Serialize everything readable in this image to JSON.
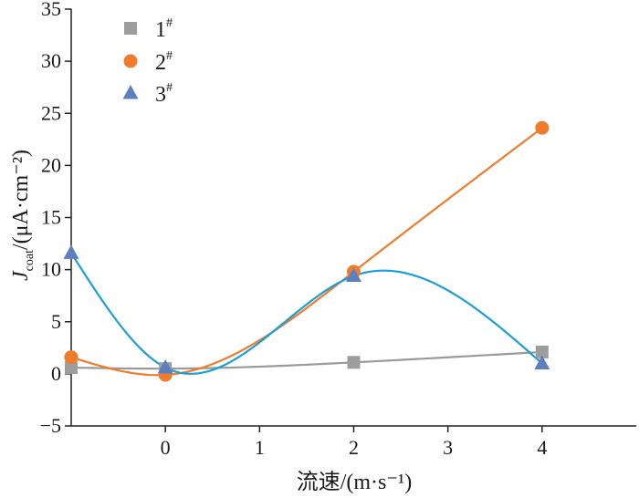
{
  "chart_data": {
    "type": "scatter",
    "xlabel": "流速/(m·s⁻¹)",
    "ylabel": "J_coat/(μA·cm⁻²)",
    "ylabel_parts": {
      "symbol": "J",
      "subscript": "coat",
      "unit": "/(μA·cm⁻²)"
    },
    "xlim": [
      -1,
      5
    ],
    "ylim": [
      -5,
      35
    ],
    "x_ticks": [
      0,
      1,
      2,
      3,
      4
    ],
    "y_ticks": [
      -5,
      0,
      5,
      10,
      15,
      20,
      25,
      30,
      35
    ],
    "legend_position": "top-left",
    "grid": false,
    "series": [
      {
        "name": "1#",
        "name_parts": {
          "base": "1",
          "sup": "#"
        },
        "marker": "square",
        "marker_color": "#9d9d9d",
        "curve_color": "#9a9a9a",
        "x": [
          -1,
          0,
          2,
          4
        ],
        "y": [
          0.6,
          0.5,
          1.1,
          2.1
        ]
      },
      {
        "name": "2#",
        "name_parts": {
          "base": "2",
          "sup": "#"
        },
        "marker": "circle",
        "marker_color": "#ef7c2c",
        "curve_color": "#ef7c2c",
        "x": [
          -1,
          0,
          2,
          4
        ],
        "y": [
          1.6,
          -0.1,
          9.8,
          23.6
        ]
      },
      {
        "name": "3#",
        "name_parts": {
          "base": "3",
          "sup": "#"
        },
        "marker": "triangle",
        "marker_color": "#5b7fbf",
        "curve_color": "#1a9fd6",
        "x": [
          -1,
          0,
          2,
          4
        ],
        "y": [
          11.6,
          0.6,
          9.4,
          1.0
        ]
      }
    ]
  }
}
